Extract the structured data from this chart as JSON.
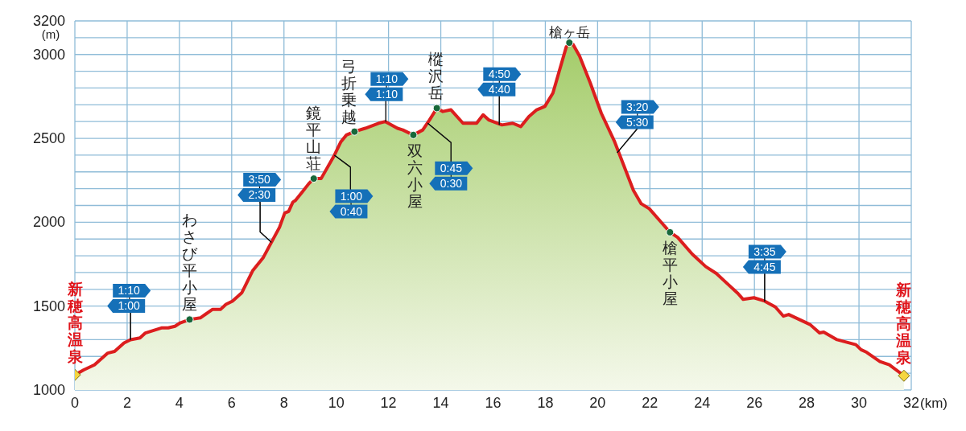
{
  "chart_data": {
    "type": "area",
    "xlabel": "(km)",
    "ylabel": "(m)",
    "grid": true,
    "xlim": [
      0,
      32
    ],
    "xticks": [
      0,
      2,
      4,
      6,
      8,
      10,
      12,
      14,
      16,
      18,
      20,
      22,
      24,
      26,
      28,
      30,
      32
    ],
    "ylim": [
      1000,
      3200
    ],
    "yticks": [
      1000,
      {
        "value": 1100,
        "label": null
      },
      {
        "value": 1200,
        "label": null
      },
      {
        "value": 1300,
        "label": null
      },
      {
        "value": 1400,
        "label": null
      },
      1500,
      {
        "value": 1600,
        "label": null
      },
      {
        "value": 1700,
        "label": null
      },
      {
        "value": 1800,
        "label": null
      },
      {
        "value": 1900,
        "label": null
      },
      2000,
      {
        "value": 2100,
        "label": null
      },
      {
        "value": 2200,
        "label": null
      },
      {
        "value": 2300,
        "label": null
      },
      {
        "value": 2400,
        "label": null
      },
      2500,
      {
        "value": 2600,
        "label": null
      },
      {
        "value": 2700,
        "label": null
      },
      {
        "value": 2800,
        "label": null
      },
      {
        "value": 2900,
        "label": null
      },
      3000,
      {
        "value": 3100,
        "label": null
      },
      3200
    ],
    "series": [
      {
        "color": "#dc1e1e",
        "x": [
          0,
          0.34,
          0.75,
          1.26,
          1.52,
          1.88,
          2.13,
          2.49,
          2.7,
          3.31,
          3.57,
          3.83,
          4.03,
          4.39,
          4.8,
          5.26,
          5.57,
          5.78,
          6.03,
          6.39,
          6.8,
          7.21,
          7.52,
          7.83,
          8.03,
          8.18,
          8.34,
          8.44,
          8.7,
          8.95,
          9.14,
          9.42,
          9.93,
          10.18,
          10.39,
          10.7,
          11.11,
          11.62,
          11.88,
          12.34,
          12.55,
          12.95,
          13.31,
          13.57,
          13.85,
          14.08,
          14.39,
          14.85,
          15.37,
          15.62,
          15.83,
          16.34,
          16.75,
          17.06,
          17.37,
          17.67,
          17.98,
          18.29,
          18.8,
          18.92,
          19.06,
          19.31,
          19.72,
          20.14,
          20.65,
          21.37,
          21.67,
          21.98,
          22.49,
          22.77,
          23.06,
          23.62,
          24.14,
          24.54,
          24.85,
          25.37,
          25.57,
          25.98,
          26.39,
          26.8,
          27.11,
          27.31,
          28.13,
          28.49,
          28.65,
          29.16,
          29.88,
          30.08,
          30.29,
          30.8,
          31.16,
          31.72
        ],
        "values": [
          1090,
          1120,
          1150,
          1220,
          1230,
          1280,
          1300,
          1310,
          1340,
          1370,
          1370,
          1380,
          1400,
          1420,
          1430,
          1480,
          1480,
          1510,
          1530,
          1580,
          1710,
          1790,
          1880,
          1970,
          2055,
          2065,
          2120,
          2130,
          2180,
          2230,
          2260,
          2260,
          2400,
          2480,
          2520,
          2540,
          2560,
          2590,
          2600,
          2560,
          2550,
          2520,
          2550,
          2610,
          2680,
          2660,
          2670,
          2590,
          2590,
          2640,
          2610,
          2580,
          2590,
          2570,
          2630,
          2670,
          2690,
          2770,
          3045,
          3070,
          3060,
          2990,
          2830,
          2650,
          2480,
          2190,
          2110,
          2080,
          1990,
          1940,
          1910,
          1810,
          1735,
          1695,
          1650,
          1575,
          1540,
          1550,
          1530,
          1495,
          1440,
          1450,
          1390,
          1340,
          1345,
          1300,
          1270,
          1240,
          1225,
          1170,
          1150,
          1085
        ]
      },
      {
        "type": "scatter",
        "color": "#17683a",
        "marker": "circle",
        "x": [
          4.39,
          9.14,
          10.7,
          12.95,
          13.85,
          18.92,
          22.77
        ],
        "values": [
          1420,
          2260,
          2540,
          2520,
          2680,
          3070,
          1940
        ]
      },
      {
        "type": "scatter",
        "color": "#f5d640",
        "marker": "diamond",
        "x": [
          0,
          31.72
        ],
        "values": [
          1090,
          1085
        ]
      }
    ],
    "annotations": [
      {
        "text": "新穂高温泉",
        "x": 0,
        "y": 1090
      },
      {
        "text": "わさび平小屋",
        "x": 4.39,
        "y": 1420
      },
      {
        "text": "鏡平山荘",
        "x": 9.14,
        "y": 2260
      },
      {
        "text": "弓折乗越",
        "x": 10.7,
        "y": 2540
      },
      {
        "text": "双六小屋",
        "x": 12.95,
        "y": 2520
      },
      {
        "text": "樅沢岳",
        "x": 13.85,
        "y": 2680
      },
      {
        "text": "槍ヶ岳",
        "x": 18.92,
        "y": 3070
      },
      {
        "text": "槍平小屋",
        "x": 22.77,
        "y": 1940
      },
      {
        "text": "新穂高温泉",
        "x": 31.72,
        "y": 1085
      },
      {
        "text": "1:10",
        "x": 2.13,
        "y": 1300
      },
      {
        "text": "1:00",
        "x": 2.13,
        "y": 1300
      },
      {
        "text": "3:50",
        "x": 7.52,
        "y": 1880
      },
      {
        "text": "2:30",
        "x": 7.52,
        "y": 1880
      },
      {
        "text": "1:00",
        "x": 9.93,
        "y": 2400
      },
      {
        "text": "0:40",
        "x": 9.93,
        "y": 2400
      },
      {
        "text": "1:10",
        "x": 11.9,
        "y": 2600
      },
      {
        "text": "1:10",
        "x": 11.9,
        "y": 2600
      },
      {
        "text": "0:45",
        "x": 13.5,
        "y": 2590
      },
      {
        "text": "0:30",
        "x": 13.5,
        "y": 2590
      },
      {
        "text": "4:50",
        "x": 16.24,
        "y": 2580
      },
      {
        "text": "4:40",
        "x": 16.24,
        "y": 2580
      },
      {
        "text": "3:20",
        "x": 20.75,
        "y": 2414
      },
      {
        "text": "5:30",
        "x": 20.75,
        "y": 2414
      },
      {
        "text": "3:35",
        "x": 26.39,
        "y": 1527
      },
      {
        "text": "4:45",
        "x": 26.39,
        "y": 1527
      }
    ]
  }
}
